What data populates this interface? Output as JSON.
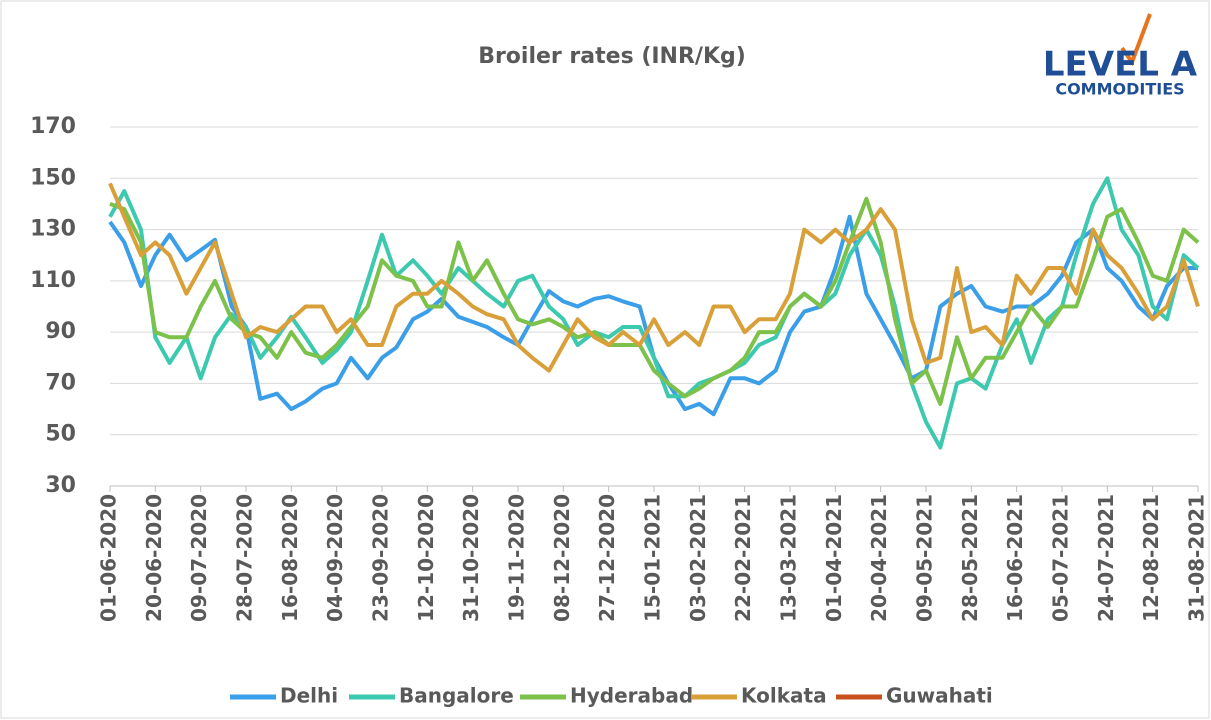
{
  "chart_data": {
    "type": "line",
    "title": "Broiler rates (INR/Kg)",
    "logo_text": "LEVEL A",
    "logo_subtext": "COMMODITIES",
    "x": [
      "01-06-2020",
      "07-06-2020",
      "14-06-2020",
      "20-06-2020",
      "26-06-2020",
      "03-07-2020",
      "09-07-2020",
      "15-07-2020",
      "22-07-2020",
      "28-07-2020",
      "03-08-2020",
      "10-08-2020",
      "16-08-2020",
      "22-08-2020",
      "29-08-2020",
      "04-09-2020",
      "10-09-2020",
      "17-09-2020",
      "23-09-2020",
      "29-09-2020",
      "06-10-2020",
      "12-10-2020",
      "18-10-2020",
      "25-10-2020",
      "31-10-2020",
      "06-11-2020",
      "13-11-2020",
      "19-11-2020",
      "25-11-2020",
      "02-12-2020",
      "08-12-2020",
      "14-12-2020",
      "21-12-2020",
      "27-12-2020",
      "02-01-2021",
      "09-01-2021",
      "15-01-2021",
      "21-01-2021",
      "28-01-2021",
      "03-02-2021",
      "09-02-2021",
      "16-02-2021",
      "22-02-2021",
      "28-02-2021",
      "07-03-2021",
      "13-03-2021",
      "19-03-2021",
      "26-03-2021",
      "01-04-2021",
      "07-04-2021",
      "14-04-2021",
      "20-04-2021",
      "26-04-2021",
      "03-05-2021",
      "09-05-2021",
      "15-05-2021",
      "22-05-2021",
      "28-05-2021",
      "03-06-2021",
      "10-06-2021",
      "16-06-2021",
      "22-06-2021",
      "29-06-2021",
      "05-07-2021",
      "11-07-2021",
      "18-07-2021",
      "24-07-2021",
      "30-07-2021",
      "06-08-2021",
      "12-08-2021",
      "18-08-2021",
      "25-08-2021",
      "31-08-2021"
    ],
    "xticks": [
      "01-06-2020",
      "20-06-2020",
      "09-07-2020",
      "28-07-2020",
      "16-08-2020",
      "04-09-2020",
      "23-09-2020",
      "12-10-2020",
      "31-10-2020",
      "19-11-2020",
      "08-12-2020",
      "27-12-2020",
      "15-01-2021",
      "03-02-2021",
      "22-02-2021",
      "13-03-2021",
      "01-04-2021",
      "20-04-2021",
      "09-05-2021",
      "28-05-2021",
      "16-06-2021",
      "05-07-2021",
      "24-07-2021",
      "12-08-2021",
      "31-08-2021"
    ],
    "ylim": [
      30,
      170
    ],
    "yticks": [
      30,
      50,
      70,
      90,
      110,
      130,
      150,
      170
    ],
    "grid": true,
    "legend": "bottom",
    "series": [
      {
        "name": "Delhi",
        "color": "#3a9ee8",
        "values": [
          133,
          125,
          108,
          120,
          128,
          118,
          122,
          126,
          100,
          92,
          64,
          66,
          60,
          63,
          68,
          70,
          80,
          72,
          80,
          84,
          95,
          98,
          103,
          96,
          94,
          92,
          88,
          85,
          95,
          106,
          102,
          100,
          103,
          104,
          102,
          100,
          80,
          70,
          60,
          62,
          58,
          72,
          72,
          70,
          75,
          90,
          98,
          100,
          115,
          135,
          105,
          95,
          85,
          72,
          75,
          100,
          105,
          108,
          100,
          98,
          100,
          100,
          105,
          112,
          125,
          130,
          115,
          110,
          100,
          95,
          108,
          115,
          115
        ]
      },
      {
        "name": "Bangalore",
        "color": "#3cc9b0",
        "values": [
          135,
          145,
          130,
          88,
          78,
          88,
          72,
          88,
          97,
          92,
          80,
          88,
          96,
          88,
          78,
          83,
          90,
          110,
          128,
          112,
          118,
          112,
          105,
          115,
          110,
          105,
          100,
          110,
          112,
          100,
          95,
          85,
          90,
          88,
          92,
          92,
          80,
          65,
          65,
          70,
          72,
          75,
          78,
          85,
          88,
          100,
          105,
          100,
          105,
          120,
          130,
          120,
          100,
          70,
          55,
          45,
          70,
          72,
          68,
          85,
          95,
          78,
          95,
          100,
          120,
          140,
          150,
          130,
          120,
          100,
          95,
          120,
          115
        ]
      },
      {
        "name": "Hyderabad",
        "color": "#7cc14a",
        "values": [
          140,
          138,
          125,
          90,
          88,
          88,
          100,
          110,
          95,
          90,
          88,
          80,
          90,
          82,
          80,
          85,
          92,
          100,
          118,
          112,
          110,
          100,
          100,
          125,
          110,
          118,
          105,
          95,
          93,
          95,
          92,
          88,
          90,
          85,
          85,
          85,
          75,
          70,
          65,
          68,
          72,
          75,
          80,
          90,
          90,
          100,
          105,
          100,
          110,
          125,
          142,
          125,
          95,
          70,
          75,
          62,
          88,
          72,
          80,
          80,
          90,
          100,
          92,
          100,
          100,
          118,
          135,
          138,
          125,
          112,
          110,
          130,
          125
        ]
      },
      {
        "name": "Kolkata",
        "color": "#d9a03a",
        "values": [
          148,
          135,
          120,
          125,
          120,
          105,
          115,
          125,
          105,
          88,
          92,
          90,
          95,
          100,
          100,
          90,
          95,
          85,
          85,
          100,
          105,
          105,
          110,
          105,
          100,
          97,
          95,
          85,
          80,
          75,
          85,
          95,
          88,
          85,
          90,
          85,
          95,
          85,
          90,
          85,
          100,
          100,
          90,
          95,
          95,
          105,
          130,
          125,
          130,
          125,
          130,
          138,
          130,
          95,
          78,
          80,
          115,
          90,
          92,
          85,
          112,
          105,
          115,
          115,
          105,
          130,
          120,
          115,
          105,
          95,
          100,
          118,
          100
        ]
      },
      {
        "name": "Guwahati",
        "color": "#c8501e",
        "values": [
          null,
          null,
          null,
          null,
          null,
          null,
          null,
          null,
          null,
          null,
          null,
          null,
          null,
          null,
          null,
          null,
          null,
          null,
          null,
          null,
          null,
          null,
          null,
          null,
          null,
          null,
          null,
          null,
          null,
          null,
          null,
          null,
          null,
          null,
          null,
          null,
          null,
          null,
          null,
          null,
          null,
          null,
          null,
          null,
          null,
          null,
          null,
          null,
          null,
          null,
          null,
          null,
          null,
          null,
          null,
          null,
          null,
          null,
          null,
          null,
          null,
          null,
          null,
          null,
          null,
          null,
          null,
          null,
          null,
          null,
          null,
          null,
          null
        ]
      }
    ]
  }
}
